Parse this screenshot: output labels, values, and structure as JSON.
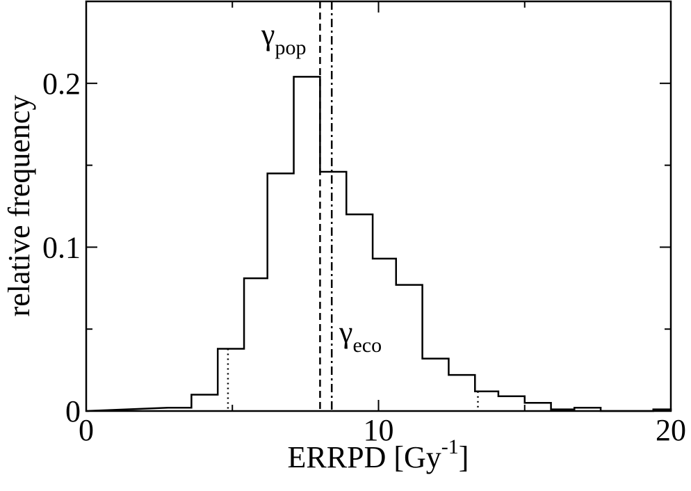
{
  "chart_data": {
    "type": "histogram",
    "xlabel": "ERRPD [Gy",
    "xlabel_sup": "-1",
    "xlabel_suffix": "]",
    "ylabel": "relative frequency",
    "xlim": [
      0,
      20
    ],
    "ylim": [
      0,
      0.25
    ],
    "x_ticks": [
      0,
      10,
      20
    ],
    "x_tick_labels": [
      "0",
      "10",
      "20"
    ],
    "y_ticks": [
      0,
      0.1,
      0.2
    ],
    "y_tick_labels": [
      "0",
      "0.1",
      "0.2"
    ],
    "x_minor_ticks": [
      5,
      15
    ],
    "y_minor_ticks": [
      0.05,
      0.15
    ],
    "grid": false,
    "legend": "none",
    "bins": [
      {
        "x0": 2.8,
        "x1": 3.6,
        "value": 0.002
      },
      {
        "x0": 3.6,
        "x1": 4.5,
        "value": 0.01
      },
      {
        "x0": 4.5,
        "x1": 5.4,
        "value": 0.038
      },
      {
        "x0": 5.4,
        "x1": 6.2,
        "value": 0.081
      },
      {
        "x0": 6.2,
        "x1": 7.1,
        "value": 0.145
      },
      {
        "x0": 7.1,
        "x1": 8.0,
        "value": 0.204
      },
      {
        "x0": 8.0,
        "x1": 8.9,
        "value": 0.146
      },
      {
        "x0": 8.9,
        "x1": 9.8,
        "value": 0.12
      },
      {
        "x0": 9.8,
        "x1": 10.6,
        "value": 0.093
      },
      {
        "x0": 10.6,
        "x1": 11.5,
        "value": 0.077
      },
      {
        "x0": 11.5,
        "x1": 12.4,
        "value": 0.032
      },
      {
        "x0": 12.4,
        "x1": 13.3,
        "value": 0.022
      },
      {
        "x0": 13.3,
        "x1": 14.1,
        "value": 0.012
      },
      {
        "x0": 14.1,
        "x1": 15.0,
        "value": 0.009
      },
      {
        "x0": 15.0,
        "x1": 15.9,
        "value": 0.005
      },
      {
        "x0": 15.9,
        "x1": 16.7,
        "value": 0.001
      },
      {
        "x0": 16.7,
        "x1": 17.6,
        "value": 0.002
      },
      {
        "x0": 17.6,
        "x1": 18.5,
        "value": 0.0
      },
      {
        "x0": 18.5,
        "x1": 19.4,
        "value": 0.0
      },
      {
        "x0": 19.4,
        "x1": 20.0,
        "value": 0.001
      }
    ],
    "vlines": [
      {
        "x": 8.0,
        "style": "dashed",
        "label": "γ",
        "label_sub": "pop"
      },
      {
        "x": 8.4,
        "style": "dashdot",
        "label": "γ",
        "label_sub": "eco"
      },
      {
        "x": 4.85,
        "style": "dotted"
      },
      {
        "x": 13.4,
        "style": "dotted"
      }
    ]
  }
}
